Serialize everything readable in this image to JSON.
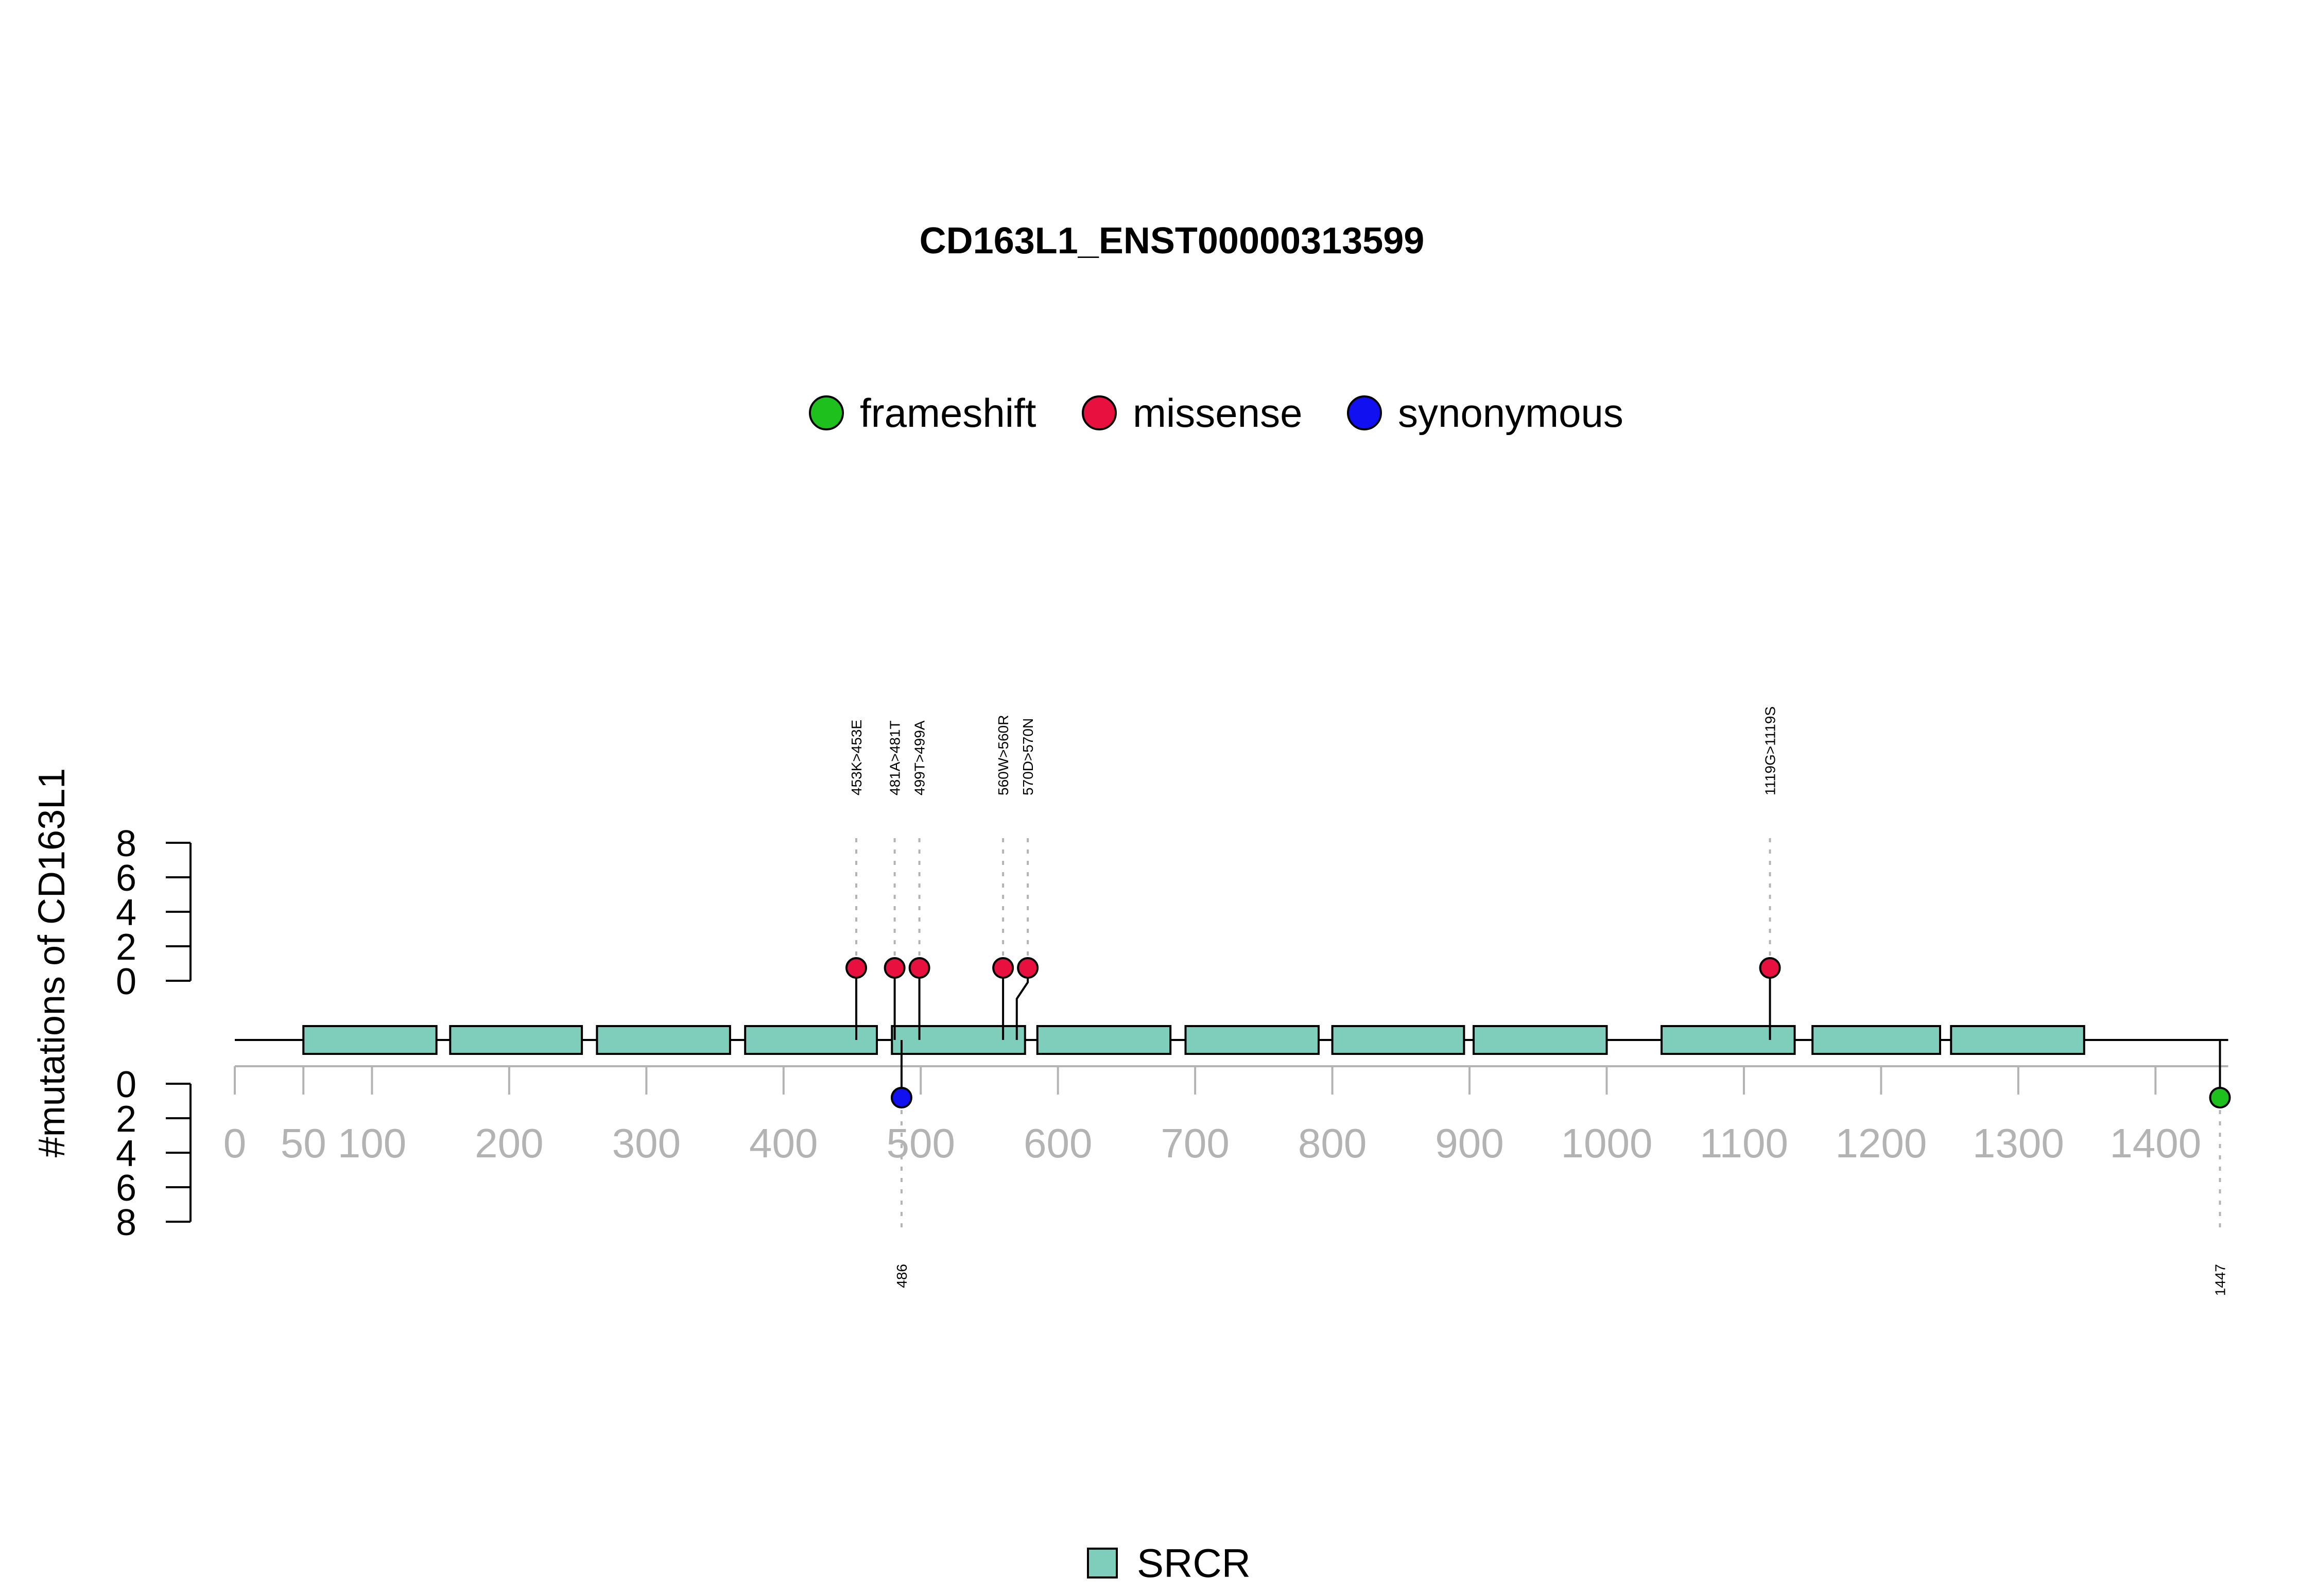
{
  "chart_data": {
    "type": "lollipop",
    "title": "CD163L1_ENST00000313599",
    "ylabel": "#mutations of CD163L1",
    "protein_length": 1453,
    "x_ticks": [
      0,
      50,
      100,
      200,
      300,
      400,
      500,
      600,
      700,
      800,
      900,
      1000,
      1100,
      1200,
      1300,
      1400
    ],
    "y_ticks_top": [
      0,
      2,
      4,
      6,
      8
    ],
    "y_ticks_bottom": [
      0,
      2,
      4,
      6,
      8
    ],
    "ylim": [
      0,
      8
    ],
    "legend": [
      {
        "label": "frameshift",
        "color": "#1ec01e"
      },
      {
        "label": "missense",
        "color": "#e8103f"
      },
      {
        "label": "synonymous",
        "color": "#1010f0"
      }
    ],
    "domain_legend": [
      {
        "label": "SRCR",
        "color": "#7fcdbb"
      }
    ],
    "domains": [
      {
        "name": "SRCR",
        "start": 50,
        "end": 147
      },
      {
        "name": "SRCR",
        "start": 157,
        "end": 253
      },
      {
        "name": "SRCR",
        "start": 264,
        "end": 361
      },
      {
        "name": "SRCR",
        "start": 372,
        "end": 468
      },
      {
        "name": "SRCR",
        "start": 479,
        "end": 576
      },
      {
        "name": "SRCR",
        "start": 585,
        "end": 682
      },
      {
        "name": "SRCR",
        "start": 693,
        "end": 790
      },
      {
        "name": "SRCR",
        "start": 800,
        "end": 896
      },
      {
        "name": "SRCR",
        "start": 903,
        "end": 1000
      },
      {
        "name": "SRCR",
        "start": 1040,
        "end": 1137
      },
      {
        "name": "SRCR",
        "start": 1150,
        "end": 1243
      },
      {
        "name": "SRCR",
        "start": 1251,
        "end": 1348
      }
    ],
    "mutations_top": [
      {
        "label": "453K>453E",
        "position": 453,
        "count": 1,
        "type": "missense"
      },
      {
        "label": "481A>481T",
        "position": 481,
        "count": 1,
        "type": "missense"
      },
      {
        "label": "499T>499A",
        "position": 499,
        "count": 1,
        "type": "missense"
      },
      {
        "label": "560W>560R",
        "position": 560,
        "count": 1,
        "type": "missense"
      },
      {
        "label": "570D>570N",
        "position": 570,
        "count": 1,
        "type": "missense"
      },
      {
        "label": "1119G>1119S",
        "position": 1119,
        "count": 1,
        "type": "missense"
      }
    ],
    "mutations_bottom": [
      {
        "label": "486",
        "position": 486,
        "count": 1,
        "type": "synonymous"
      },
      {
        "label": "1447",
        "position": 1447,
        "count": 1,
        "type": "frameshift"
      }
    ]
  }
}
